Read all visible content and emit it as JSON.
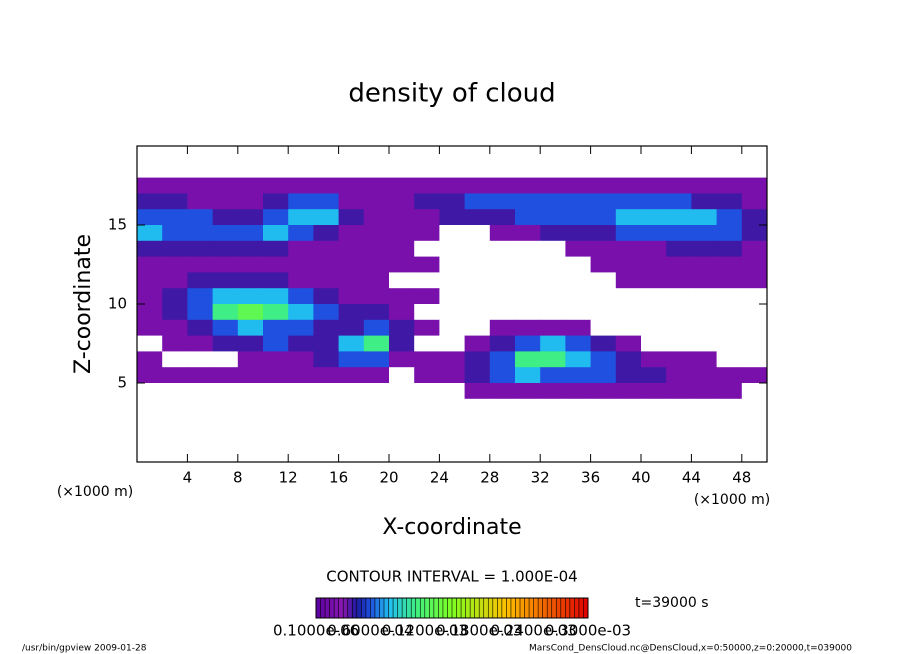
{
  "chart_data": {
    "type": "contour",
    "title": "density of cloud",
    "xlabel": "X-coordinate",
    "ylabel": "Z-coordinate",
    "xunit": "(×1000 m)",
    "yunit": "(×1000 m)",
    "xlim": [
      0,
      50
    ],
    "ylim": [
      0,
      20
    ],
    "xticks": [
      4,
      8,
      12,
      16,
      20,
      24,
      28,
      32,
      36,
      40,
      44,
      48
    ],
    "yticks": [
      5,
      10,
      15
    ],
    "x": [
      1,
      3,
      5,
      7,
      9,
      11,
      13,
      15,
      17,
      19,
      21,
      23,
      25,
      27,
      29,
      31,
      33,
      35,
      37,
      39,
      41,
      43,
      45,
      47,
      49
    ],
    "z": [
      19.5,
      18.5,
      17.5,
      16.5,
      15.5,
      14.5,
      13.5,
      12.5,
      11.5,
      10.5,
      9.5,
      8.5,
      7.5,
      6.5,
      5.5,
      4.5,
      3.5,
      2.5,
      1.5,
      0.5
    ],
    "values": [
      [
        0,
        0,
        0,
        0,
        0,
        0,
        0,
        0,
        0,
        0,
        0,
        0,
        0,
        0,
        0,
        0,
        0,
        0,
        0,
        0,
        0,
        0,
        0,
        0,
        0
      ],
      [
        0,
        0,
        0,
        0,
        0,
        0,
        0,
        0,
        0,
        0,
        0,
        0,
        0,
        0,
        0,
        0,
        0,
        0,
        0,
        0,
        0,
        0,
        0,
        0,
        0
      ],
      [
        2e-05,
        2e-05,
        2e-05,
        2e-05,
        2e-05,
        2e-05,
        2e-05,
        2e-05,
        2e-05,
        2e-05,
        2e-05,
        2e-05,
        2e-05,
        2e-05,
        2e-05,
        2e-05,
        2e-05,
        2e-05,
        2e-05,
        2e-05,
        2e-05,
        2e-05,
        2e-05,
        2e-05,
        2e-05
      ],
      [
        4e-05,
        4e-05,
        2e-05,
        2e-05,
        2e-05,
        4e-05,
        6e-05,
        6e-05,
        2e-05,
        2e-05,
        2e-05,
        4e-05,
        4e-05,
        6e-05,
        6e-05,
        6e-05,
        6e-05,
        6e-05,
        6e-05,
        6e-05,
        6e-05,
        6e-05,
        4e-05,
        4e-05,
        2e-05
      ],
      [
        6e-05,
        6e-05,
        6e-05,
        4e-05,
        4e-05,
        6e-05,
        8e-05,
        8e-05,
        4e-05,
        2e-05,
        2e-05,
        2e-05,
        4e-05,
        4e-05,
        4e-05,
        6e-05,
        6e-05,
        6e-05,
        6e-05,
        8e-05,
        8e-05,
        8e-05,
        8e-05,
        6e-05,
        4e-05
      ],
      [
        8e-05,
        6e-05,
        6e-05,
        6e-05,
        6e-05,
        8e-05,
        6e-05,
        4e-05,
        2e-05,
        2e-05,
        2e-05,
        2e-05,
        0,
        0,
        2e-05,
        2e-05,
        4e-05,
        4e-05,
        4e-05,
        6e-05,
        6e-05,
        6e-05,
        6e-05,
        6e-05,
        4e-05
      ],
      [
        4e-05,
        4e-05,
        4e-05,
        4e-05,
        4e-05,
        4e-05,
        2e-05,
        2e-05,
        2e-05,
        2e-05,
        2e-05,
        0,
        0,
        0,
        0,
        0,
        0,
        2e-05,
        2e-05,
        2e-05,
        2e-05,
        4e-05,
        4e-05,
        4e-05,
        2e-05
      ],
      [
        2e-05,
        2e-05,
        2e-05,
        2e-05,
        2e-05,
        2e-05,
        2e-05,
        2e-05,
        2e-05,
        2e-05,
        2e-05,
        2e-05,
        0,
        0,
        0,
        0,
        0,
        0,
        2e-05,
        2e-05,
        2e-05,
        2e-05,
        2e-05,
        2e-05,
        2e-05
      ],
      [
        2e-05,
        2e-05,
        4e-05,
        4e-05,
        4e-05,
        4e-05,
        2e-05,
        2e-05,
        2e-05,
        2e-05,
        0,
        0,
        0,
        0,
        0,
        0,
        0,
        0,
        0,
        2e-05,
        2e-05,
        2e-05,
        2e-05,
        2e-05,
        2e-05
      ],
      [
        2e-05,
        4e-05,
        6e-05,
        8e-05,
        8e-05,
        8e-05,
        6e-05,
        4e-05,
        2e-05,
        2e-05,
        2e-05,
        2e-05,
        0,
        0,
        0,
        0,
        0,
        0,
        0,
        0,
        0,
        0,
        0,
        0,
        0
      ],
      [
        2e-05,
        4e-05,
        6e-05,
        0.00011,
        0.00013,
        0.00011,
        8e-05,
        6e-05,
        4e-05,
        4e-05,
        2e-05,
        0,
        0,
        0,
        0,
        0,
        0,
        0,
        0,
        0,
        0,
        0,
        0,
        0,
        0
      ],
      [
        2e-05,
        2e-05,
        4e-05,
        6e-05,
        8e-05,
        6e-05,
        6e-05,
        4e-05,
        4e-05,
        6e-05,
        4e-05,
        2e-05,
        0,
        0,
        2e-05,
        2e-05,
        2e-05,
        2e-05,
        0,
        0,
        0,
        0,
        0,
        0,
        0
      ],
      [
        0,
        2e-05,
        2e-05,
        4e-05,
        4e-05,
        6e-05,
        4e-05,
        4e-05,
        8e-05,
        0.00011,
        4e-05,
        0,
        0,
        2e-05,
        4e-05,
        6e-05,
        8e-05,
        6e-05,
        4e-05,
        2e-05,
        0,
        0,
        0,
        0,
        0
      ],
      [
        2e-05,
        0,
        0,
        0,
        2e-05,
        2e-05,
        2e-05,
        4e-05,
        6e-05,
        6e-05,
        2e-05,
        2e-05,
        2e-05,
        4e-05,
        6e-05,
        0.00011,
        0.00011,
        8e-05,
        6e-05,
        4e-05,
        2e-05,
        2e-05,
        2e-05,
        0,
        0
      ],
      [
        2e-05,
        2e-05,
        2e-05,
        2e-05,
        2e-05,
        2e-05,
        2e-05,
        2e-05,
        2e-05,
        2e-05,
        0,
        2e-05,
        2e-05,
        4e-05,
        6e-05,
        8e-05,
        6e-05,
        6e-05,
        6e-05,
        4e-05,
        4e-05,
        2e-05,
        2e-05,
        2e-05,
        2e-05
      ],
      [
        0,
        0,
        0,
        0,
        0,
        0,
        0,
        0,
        0,
        0,
        0,
        0,
        0,
        2e-05,
        2e-05,
        2e-05,
        2e-05,
        2e-05,
        2e-05,
        2e-05,
        2e-05,
        2e-05,
        2e-05,
        2e-05,
        0
      ],
      [
        0,
        0,
        0,
        0,
        0,
        0,
        0,
        0,
        0,
        0,
        0,
        0,
        0,
        0,
        0,
        0,
        0,
        0,
        0,
        0,
        0,
        0,
        0,
        0,
        0
      ],
      [
        0,
        0,
        0,
        0,
        0,
        0,
        0,
        0,
        0,
        0,
        0,
        0,
        0,
        0,
        0,
        0,
        0,
        0,
        0,
        0,
        0,
        0,
        0,
        0,
        0
      ],
      [
        0,
        0,
        0,
        0,
        0,
        0,
        0,
        0,
        0,
        0,
        0,
        0,
        0,
        0,
        0,
        0,
        0,
        0,
        0,
        0,
        0,
        0,
        0,
        0,
        0
      ],
      [
        0,
        0,
        0,
        0,
        0,
        0,
        0,
        0,
        0,
        0,
        0,
        0,
        0,
        0,
        0,
        0,
        0,
        0,
        0,
        0,
        0,
        0,
        0,
        0,
        0
      ]
    ],
    "colorbar": {
      "lim": [
        0,
        0.0003
      ],
      "ticks": [
        {
          "value": 1e-07,
          "label": "0.1000e-06"
        },
        {
          "value": 6e-05,
          "label": "0.6000e-04"
        },
        {
          "value": 0.00012,
          "label": "0.1200e-03"
        },
        {
          "value": 0.00018,
          "label": "0.1800e-03"
        },
        {
          "value": 0.00024,
          "label": "0.2400e-03"
        },
        {
          "value": 0.0003,
          "label": "0.3000e-03"
        }
      ]
    },
    "contour_interval": "CONTOUR INTERVAL = 1.000E-04",
    "time": "t=39000 s",
    "footer_left": "/usr/bin/gpview   2009-01-28",
    "footer_right": "MarsCond_DensCloud.nc@DensCloud,x=0:50000,z=0:20000,t=039000"
  }
}
